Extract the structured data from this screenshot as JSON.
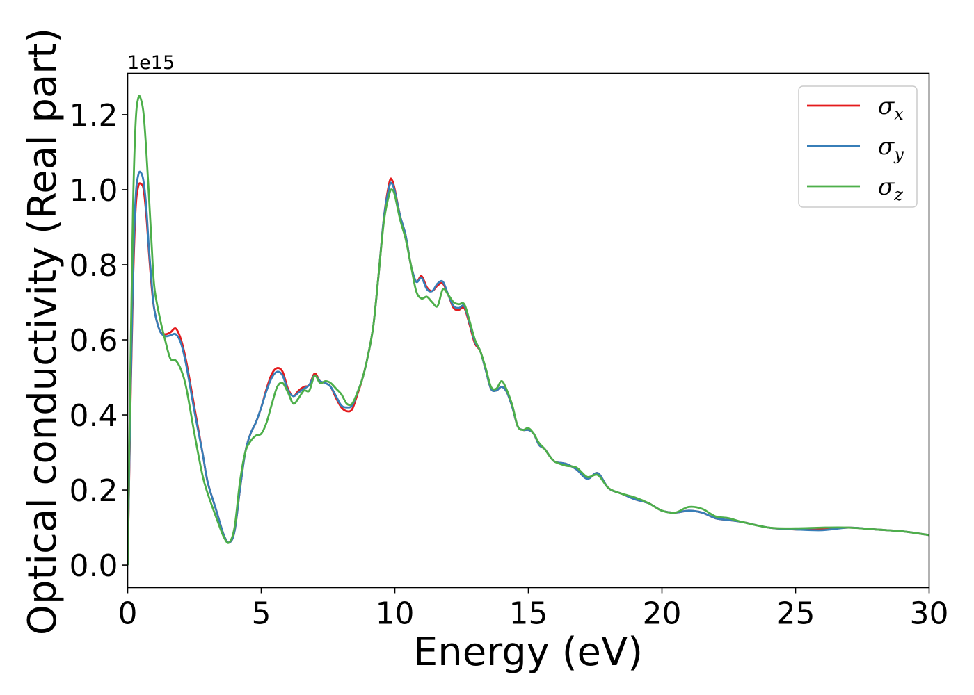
{
  "chart_data": {
    "type": "line",
    "title": "",
    "xlabel": "Energy (eV)",
    "ylabel": "Optical conductivity (Real part)",
    "y_offset_label": "1e15",
    "xlim": [
      0,
      30
    ],
    "ylim": [
      -0.06,
      1.31
    ],
    "x_ticks": [
      0,
      5,
      10,
      15,
      20,
      25,
      30
    ],
    "x_tick_labels": [
      "0",
      "5",
      "10",
      "15",
      "20",
      "25",
      "30"
    ],
    "y_ticks": [
      0.0,
      0.2,
      0.4,
      0.6,
      0.8,
      1.0,
      1.2
    ],
    "y_tick_labels": [
      "0.0",
      "0.2",
      "0.4",
      "0.6",
      "0.8",
      "1.0",
      "1.2"
    ],
    "grid": false,
    "legend_position": "top-right",
    "series": [
      {
        "name": "σx",
        "legend_symbol": "σ",
        "legend_sub": "x",
        "color": "#e41a1c",
        "x": [
          0,
          0.1,
          0.2,
          0.3,
          0.4,
          0.5,
          0.6,
          0.7,
          0.8,
          0.9,
          1.0,
          1.2,
          1.4,
          1.6,
          1.8,
          2.0,
          2.2,
          2.5,
          2.8,
          3.0,
          3.3,
          3.6,
          3.8,
          4.0,
          4.2,
          4.4,
          4.6,
          4.8,
          5.0,
          5.2,
          5.4,
          5.6,
          5.8,
          6.0,
          6.2,
          6.4,
          6.6,
          6.8,
          7.0,
          7.2,
          7.4,
          7.6,
          7.8,
          8.0,
          8.2,
          8.4,
          8.6,
          8.8,
          9.0,
          9.2,
          9.4,
          9.6,
          9.8,
          9.9,
          10.0,
          10.2,
          10.4,
          10.6,
          10.8,
          11.0,
          11.2,
          11.4,
          11.6,
          11.8,
          12.0,
          12.2,
          12.4,
          12.6,
          12.8,
          13.0,
          13.2,
          13.4,
          13.6,
          13.8,
          14.0,
          14.2,
          14.4,
          14.6,
          14.8,
          15.0,
          15.2,
          15.4,
          15.6,
          15.8,
          16.0,
          16.4,
          16.8,
          17.2,
          17.6,
          18.0,
          18.5,
          19.0,
          19.5,
          20.0,
          20.5,
          21.0,
          21.5,
          22.0,
          22.5,
          23.0,
          24.0,
          25.0,
          26.0,
          27.0,
          28.0,
          29.0,
          30.0
        ],
        "y": [
          0.0,
          0.4,
          0.75,
          0.95,
          1.01,
          1.015,
          1.0,
          0.93,
          0.83,
          0.74,
          0.68,
          0.625,
          0.615,
          0.62,
          0.63,
          0.6,
          0.54,
          0.42,
          0.3,
          0.22,
          0.15,
          0.08,
          0.06,
          0.09,
          0.2,
          0.3,
          0.35,
          0.38,
          0.42,
          0.47,
          0.51,
          0.525,
          0.515,
          0.47,
          0.45,
          0.465,
          0.475,
          0.48,
          0.51,
          0.49,
          0.485,
          0.475,
          0.445,
          0.42,
          0.41,
          0.415,
          0.455,
          0.5,
          0.56,
          0.64,
          0.78,
          0.93,
          1.02,
          1.025,
          1.0,
          0.93,
          0.88,
          0.8,
          0.755,
          0.77,
          0.74,
          0.73,
          0.745,
          0.75,
          0.72,
          0.685,
          0.68,
          0.685,
          0.64,
          0.59,
          0.57,
          0.52,
          0.47,
          0.465,
          0.475,
          0.46,
          0.42,
          0.37,
          0.36,
          0.36,
          0.35,
          0.32,
          0.31,
          0.29,
          0.275,
          0.27,
          0.255,
          0.23,
          0.245,
          0.205,
          0.19,
          0.175,
          0.165,
          0.145,
          0.14,
          0.145,
          0.14,
          0.125,
          0.12,
          0.115,
          0.1,
          0.095,
          0.095,
          0.1,
          0.095,
          0.09,
          0.08
        ]
      },
      {
        "name": "σy",
        "legend_symbol": "σ",
        "legend_sub": "y",
        "color": "#377eb8",
        "x": [
          0,
          0.1,
          0.2,
          0.3,
          0.4,
          0.5,
          0.6,
          0.7,
          0.8,
          0.9,
          1.0,
          1.2,
          1.4,
          1.6,
          1.8,
          2.0,
          2.2,
          2.5,
          2.8,
          3.0,
          3.3,
          3.6,
          3.8,
          4.0,
          4.2,
          4.4,
          4.6,
          4.8,
          5.0,
          5.2,
          5.4,
          5.6,
          5.8,
          6.0,
          6.2,
          6.4,
          6.6,
          6.8,
          7.0,
          7.2,
          7.4,
          7.6,
          7.8,
          8.0,
          8.2,
          8.4,
          8.6,
          8.8,
          9.0,
          9.2,
          9.4,
          9.6,
          9.8,
          9.9,
          10.0,
          10.2,
          10.4,
          10.6,
          10.8,
          11.0,
          11.2,
          11.4,
          11.6,
          11.8,
          12.0,
          12.2,
          12.4,
          12.6,
          12.8,
          13.0,
          13.2,
          13.4,
          13.6,
          13.8,
          14.0,
          14.2,
          14.4,
          14.6,
          14.8,
          15.0,
          15.2,
          15.4,
          15.6,
          15.8,
          16.0,
          16.4,
          16.8,
          17.2,
          17.6,
          18.0,
          18.5,
          19.0,
          19.5,
          20.0,
          20.5,
          21.0,
          21.5,
          22.0,
          22.5,
          23.0,
          24.0,
          25.0,
          26.0,
          27.0,
          28.0,
          29.0,
          30.0
        ],
        "y": [
          0.0,
          0.42,
          0.78,
          0.98,
          1.04,
          1.045,
          1.02,
          0.95,
          0.84,
          0.75,
          0.68,
          0.625,
          0.61,
          0.612,
          0.615,
          0.59,
          0.53,
          0.41,
          0.3,
          0.22,
          0.15,
          0.08,
          0.06,
          0.09,
          0.2,
          0.3,
          0.35,
          0.38,
          0.42,
          0.465,
          0.5,
          0.515,
          0.505,
          0.465,
          0.45,
          0.46,
          0.47,
          0.48,
          0.505,
          0.49,
          0.485,
          0.475,
          0.45,
          0.425,
          0.42,
          0.425,
          0.46,
          0.5,
          0.56,
          0.64,
          0.78,
          0.93,
          1.01,
          1.015,
          0.995,
          0.93,
          0.88,
          0.8,
          0.755,
          0.765,
          0.735,
          0.73,
          0.75,
          0.755,
          0.72,
          0.69,
          0.685,
          0.69,
          0.645,
          0.595,
          0.57,
          0.52,
          0.47,
          0.465,
          0.475,
          0.46,
          0.42,
          0.37,
          0.36,
          0.36,
          0.35,
          0.32,
          0.31,
          0.29,
          0.275,
          0.27,
          0.255,
          0.23,
          0.245,
          0.205,
          0.19,
          0.175,
          0.165,
          0.145,
          0.14,
          0.145,
          0.14,
          0.125,
          0.12,
          0.115,
          0.1,
          0.095,
          0.093,
          0.1,
          0.095,
          0.09,
          0.08
        ]
      },
      {
        "name": "σz",
        "legend_symbol": "σ",
        "legend_sub": "z",
        "color": "#4daf4a",
        "x": [
          0,
          0.1,
          0.2,
          0.3,
          0.4,
          0.5,
          0.6,
          0.7,
          0.8,
          0.9,
          1.0,
          1.2,
          1.4,
          1.6,
          1.8,
          2.0,
          2.2,
          2.5,
          2.8,
          3.0,
          3.3,
          3.6,
          3.8,
          4.0,
          4.2,
          4.4,
          4.6,
          4.8,
          5.0,
          5.2,
          5.4,
          5.6,
          5.8,
          6.0,
          6.2,
          6.4,
          6.6,
          6.8,
          7.0,
          7.2,
          7.4,
          7.6,
          7.8,
          8.0,
          8.2,
          8.4,
          8.6,
          8.8,
          9.0,
          9.2,
          9.4,
          9.6,
          9.8,
          9.9,
          10.0,
          10.2,
          10.4,
          10.6,
          10.8,
          11.0,
          11.2,
          11.4,
          11.6,
          11.8,
          12.0,
          12.2,
          12.4,
          12.6,
          12.8,
          13.0,
          13.2,
          13.4,
          13.6,
          13.8,
          14.0,
          14.2,
          14.4,
          14.6,
          14.8,
          15.0,
          15.2,
          15.4,
          15.6,
          15.8,
          16.0,
          16.4,
          16.8,
          17.2,
          17.6,
          18.0,
          18.5,
          19.0,
          19.5,
          20.0,
          20.5,
          21.0,
          21.5,
          22.0,
          22.5,
          23.0,
          24.0,
          25.0,
          26.0,
          27.0,
          28.0,
          29.0,
          30.0
        ],
        "y": [
          0.0,
          0.5,
          0.95,
          1.18,
          1.245,
          1.24,
          1.2,
          1.1,
          0.98,
          0.85,
          0.74,
          0.66,
          0.6,
          0.55,
          0.545,
          0.52,
          0.47,
          0.35,
          0.24,
          0.19,
          0.13,
          0.075,
          0.06,
          0.1,
          0.22,
          0.3,
          0.33,
          0.345,
          0.35,
          0.38,
          0.43,
          0.475,
          0.485,
          0.46,
          0.43,
          0.445,
          0.465,
          0.465,
          0.505,
          0.485,
          0.49,
          0.485,
          0.47,
          0.455,
          0.43,
          0.43,
          0.46,
          0.5,
          0.56,
          0.64,
          0.78,
          0.92,
          0.99,
          1.0,
          0.985,
          0.92,
          0.87,
          0.8,
          0.73,
          0.71,
          0.715,
          0.7,
          0.69,
          0.735,
          0.72,
          0.7,
          0.695,
          0.695,
          0.65,
          0.6,
          0.57,
          0.525,
          0.475,
          0.47,
          0.49,
          0.465,
          0.425,
          0.37,
          0.36,
          0.365,
          0.35,
          0.325,
          0.31,
          0.29,
          0.275,
          0.265,
          0.26,
          0.235,
          0.24,
          0.205,
          0.19,
          0.18,
          0.165,
          0.145,
          0.14,
          0.155,
          0.15,
          0.13,
          0.125,
          0.115,
          0.1,
          0.098,
          0.1,
          0.1,
          0.095,
          0.09,
          0.08
        ]
      }
    ]
  }
}
